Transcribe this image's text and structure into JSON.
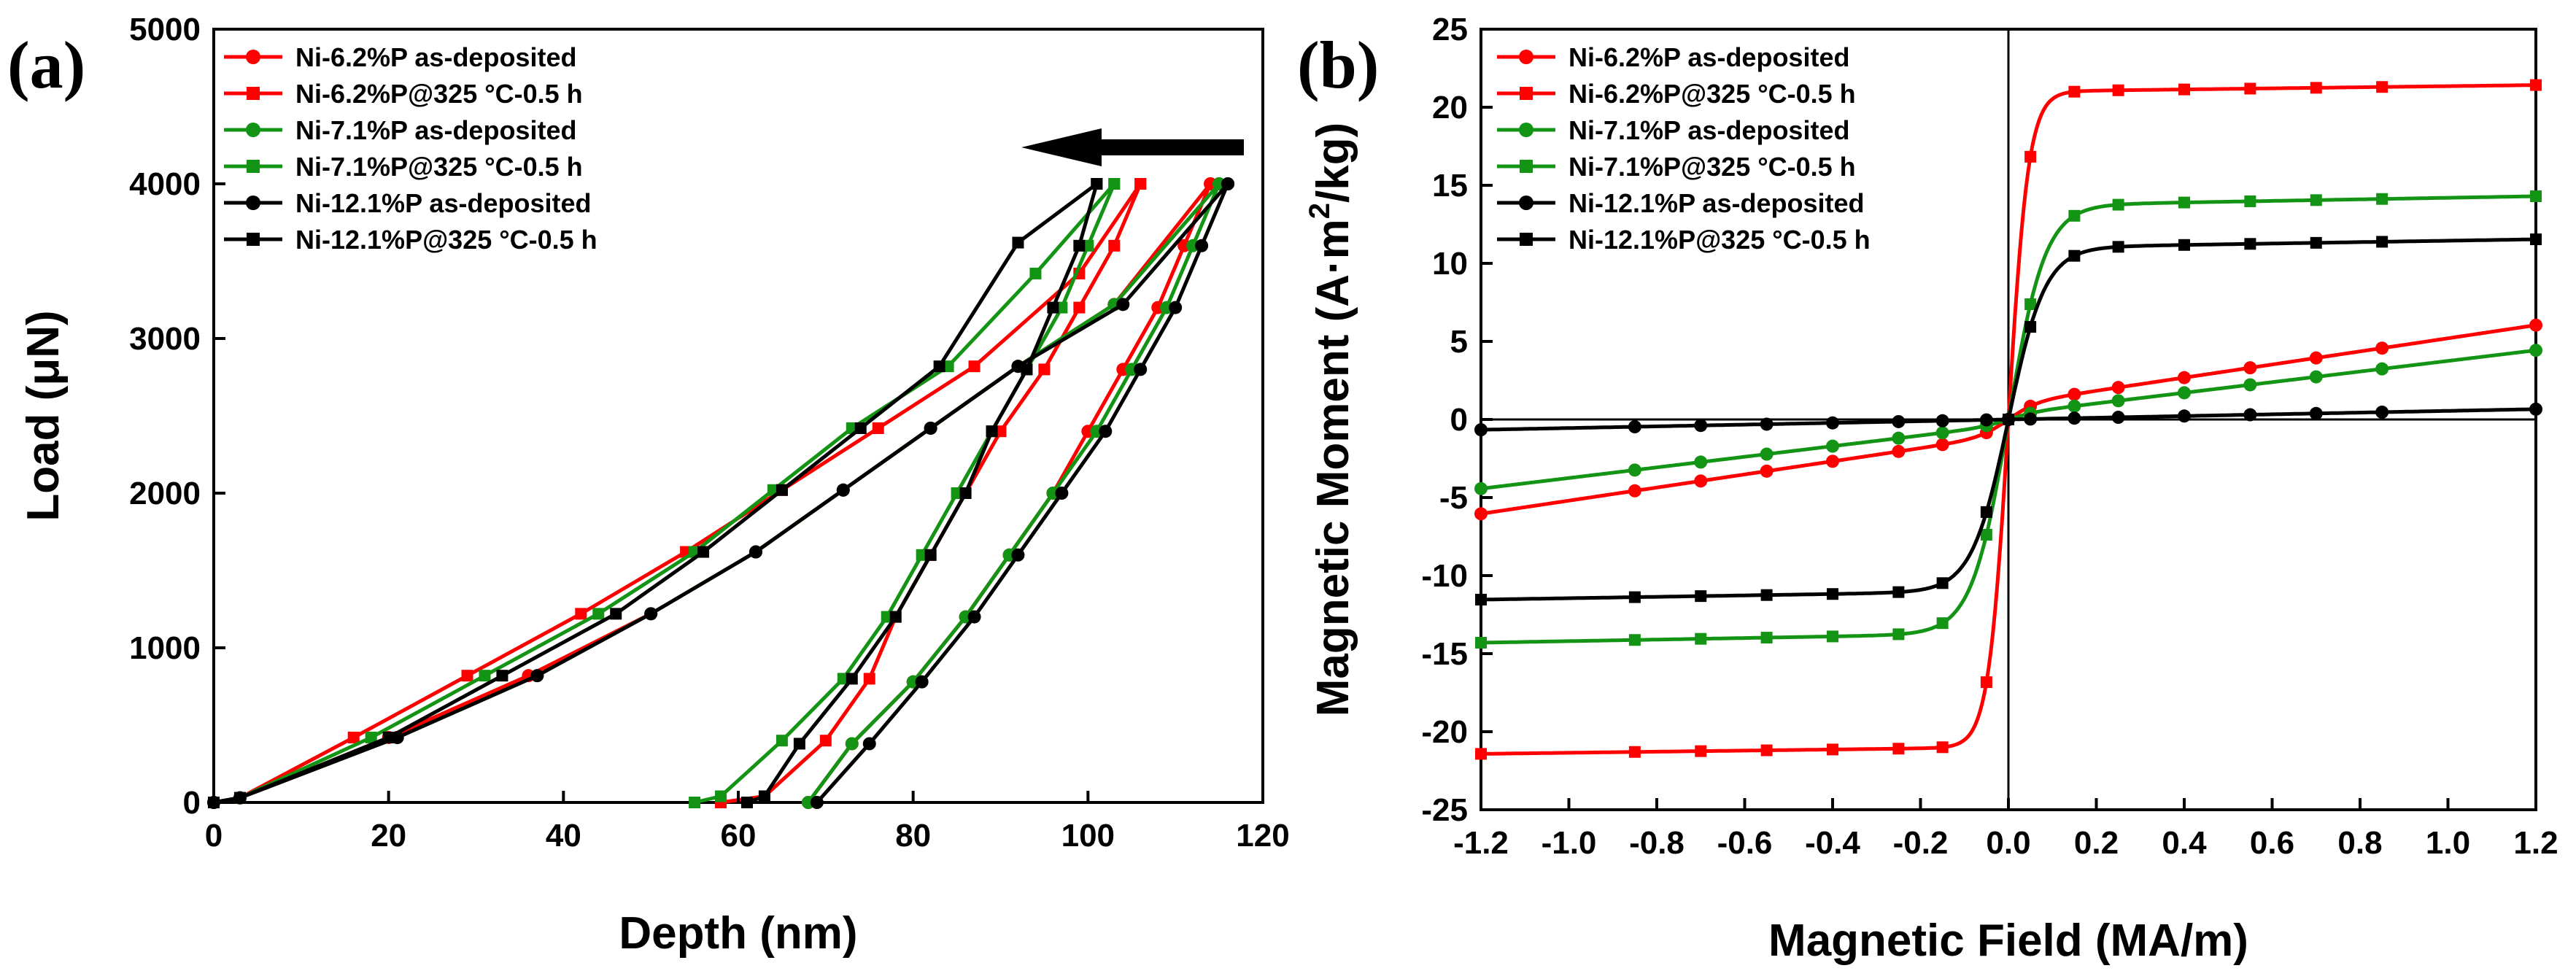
{
  "chart_data": [
    {
      "type": "line",
      "panel_label": "(a)",
      "xlabel": "Depth (nm)",
      "ylabel": "Load (μN)",
      "xlim": [
        0,
        120
      ],
      "ylim": [
        0,
        5000
      ],
      "xticks": [
        "0",
        "20",
        "40",
        "60",
        "80",
        "100",
        "120"
      ],
      "yticks": [
        "0",
        "1000",
        "2000",
        "3000",
        "4000",
        "5000"
      ],
      "legend_position": "top-left",
      "annotation": "arrow pointing left near top-right",
      "series": [
        {
          "name": "Ni-6.2%P as-deposited",
          "color": "#ff0000",
          "marker": "circle",
          "loading": {
            "x": [
              0,
              3,
              20,
              36,
              50,
              62,
              72,
              82,
              92,
              103,
              114
            ],
            "y": [
              0,
              30,
              420,
              820,
              1220,
              1620,
              2020,
              2420,
              2820,
              3220,
              4000
            ]
          },
          "unloading": {
            "x": [
              114,
              111,
              108,
              104,
              100,
              96,
              91,
              86,
              80,
              73,
              68
            ],
            "y": [
              4000,
              3600,
              3200,
              2800,
              2400,
              2000,
              1600,
              1200,
              780,
              380,
              0
            ]
          }
        },
        {
          "name": "Ni-6.2%P@325 °C-0.5 h",
          "color": "#ff0000",
          "marker": "square",
          "loading": {
            "x": [
              0,
              3,
              16,
              29,
              42,
              54,
              65,
              76,
              87,
              99,
              106
            ],
            "y": [
              0,
              30,
              420,
              820,
              1220,
              1620,
              2020,
              2420,
              2820,
              3420,
              4000
            ]
          },
          "unloading": {
            "x": [
              106,
              103,
              99,
              95,
              90,
              86,
              82,
              78,
              75,
              70,
              63,
              58
            ],
            "y": [
              4000,
              3600,
              3200,
              2800,
              2400,
              2000,
              1600,
              1200,
              800,
              400,
              40,
              0
            ]
          }
        },
        {
          "name": "Ni-7.1%P as-deposited",
          "color": "#149414",
          "marker": "circle",
          "loading": {
            "x": [
              0,
              3,
              21,
              37,
              50,
              62,
              72,
              82,
              92,
              103,
              115
            ],
            "y": [
              0,
              30,
              420,
              820,
              1220,
              1620,
              2020,
              2420,
              2820,
              3220,
              4000
            ]
          },
          "unloading": {
            "x": [
              115,
              112,
              109,
              105,
              101,
              96,
              91,
              86,
              80,
              73,
              68
            ],
            "y": [
              4000,
              3600,
              3200,
              2800,
              2400,
              2000,
              1600,
              1200,
              780,
              380,
              0
            ]
          }
        },
        {
          "name": "Ni-7.1%P@325 °C-0.5 h",
          "color": "#149414",
          "marker": "square",
          "loading": {
            "x": [
              0,
              3,
              18,
              31,
              44,
              55,
              64,
              73,
              84,
              94,
              103
            ],
            "y": [
              0,
              30,
              420,
              820,
              1220,
              1620,
              2020,
              2420,
              2820,
              3420,
              4000
            ]
          },
          "unloading": {
            "x": [
              103,
              100,
              97,
              93,
              89,
              85,
              81,
              77,
              72,
              65,
              58,
              55
            ],
            "y": [
              4000,
              3600,
              3200,
              2800,
              2400,
              2000,
              1600,
              1200,
              800,
              400,
              40,
              0
            ]
          }
        },
        {
          "name": "Ni-12.1%P as-deposited",
          "color": "#000000",
          "marker": "circle",
          "loading": {
            "x": [
              0,
              3,
              21,
              37,
              50,
              62,
              72,
              82,
              92,
              104,
              116
            ],
            "y": [
              0,
              30,
              420,
              820,
              1220,
              1620,
              2020,
              2420,
              2820,
              3220,
              4000
            ]
          },
          "unloading": {
            "x": [
              116,
              113,
              110,
              106,
              102,
              97,
              92,
              87,
              81,
              75,
              69
            ],
            "y": [
              4000,
              3600,
              3200,
              2800,
              2400,
              2000,
              1600,
              1200,
              780,
              380,
              0
            ]
          }
        },
        {
          "name": "Ni-12.1%P@325 °C-0.5 h",
          "color": "#000000",
          "marker": "square",
          "loading": {
            "x": [
              0,
              3,
              20,
              33,
              46,
              56,
              65,
              74,
              83,
              92,
              101
            ],
            "y": [
              0,
              30,
              420,
              820,
              1220,
              1620,
              2020,
              2420,
              2820,
              3620,
              4000
            ]
          },
          "unloading": {
            "x": [
              101,
              99,
              96,
              93,
              89,
              86,
              82,
              78,
              73,
              67,
              63,
              61
            ],
            "y": [
              4000,
              3600,
              3200,
              2800,
              2400,
              2000,
              1600,
              1200,
              800,
              380,
              40,
              0
            ]
          }
        }
      ]
    },
    {
      "type": "line",
      "panel_label": "(b)",
      "xlabel": "Magnetic Field (MA/m)",
      "ylabel_parts": [
        "Magnetic Moment (A·m",
        "2",
        "/kg)"
      ],
      "xlim": [
        -1.2,
        1.2
      ],
      "ylim": [
        -25,
        25
      ],
      "xticks": [
        "-1.2",
        "-1.0",
        "-0.8",
        "-0.6",
        "-0.4",
        "-0.2",
        "0.0",
        "0.2",
        "0.4",
        "0.6",
        "0.8",
        "1.0",
        "1.2"
      ],
      "yticks": [
        "-25",
        "-20",
        "-15",
        "-10",
        "-5",
        "0",
        "5",
        "10",
        "15",
        "20",
        "25"
      ],
      "legend_position": "top-left",
      "series": [
        {
          "name": "Ni-6.2%P as-deposited",
          "color": "#ff0000",
          "marker": "circle",
          "type": "linear-slope",
          "slope": 4.2,
          "k": 15,
          "c": 1.0,
          "x": [
            -1.2,
            -0.85,
            -0.7,
            -0.55,
            -0.4,
            -0.25,
            -0.15,
            -0.05,
            0,
            0.05,
            0.15,
            0.25,
            0.4,
            0.55,
            0.7,
            0.85,
            1.2
          ]
        },
        {
          "name": "Ni-6.2%P@325 °C-0.5 h",
          "color": "#ff0000",
          "marker": "square",
          "type": "tanh",
          "ms": 21.0,
          "k": 22,
          "slope": 0.35,
          "x": [
            -1.2,
            -0.85,
            -0.7,
            -0.55,
            -0.4,
            -0.25,
            -0.15,
            -0.05,
            0,
            0.05,
            0.15,
            0.25,
            0.4,
            0.55,
            0.7,
            0.85,
            1.2
          ]
        },
        {
          "name": "Ni-7.1%P as-deposited",
          "color": "#149414",
          "marker": "circle",
          "type": "linear-slope",
          "slope": 3.4,
          "k": 15,
          "c": 0.35,
          "x": [
            -1.2,
            -0.85,
            -0.7,
            -0.55,
            -0.4,
            -0.25,
            -0.15,
            -0.05,
            0,
            0.05,
            0.15,
            0.25,
            0.4,
            0.55,
            0.7,
            0.85,
            1.2
          ]
        },
        {
          "name": "Ni-7.1%P@325 °C-0.5 h",
          "color": "#149414",
          "marker": "square",
          "type": "tanh",
          "ms": 13.7,
          "k": 12,
          "slope": 0.5,
          "x": [
            -1.2,
            -0.85,
            -0.7,
            -0.55,
            -0.4,
            -0.25,
            -0.15,
            -0.05,
            0,
            0.05,
            0.15,
            0.25,
            0.4,
            0.55,
            0.7,
            0.85,
            1.2
          ]
        },
        {
          "name": "Ni-12.1%P as-deposited",
          "color": "#000000",
          "marker": "circle",
          "type": "linear-slope",
          "slope": 0.55,
          "k": 15,
          "c": 0.0,
          "x": [
            -1.2,
            -0.85,
            -0.7,
            -0.55,
            -0.4,
            -0.25,
            -0.15,
            -0.05,
            0,
            0.05,
            0.15,
            0.25,
            0.4,
            0.55,
            0.7,
            0.85,
            1.2
          ]
        },
        {
          "name": "Ni-12.1%P@325 °C-0.5 h",
          "color": "#000000",
          "marker": "square",
          "type": "tanh",
          "ms": 11.0,
          "k": 12,
          "slope": 0.45,
          "x": [
            -1.2,
            -0.85,
            -0.7,
            -0.55,
            -0.4,
            -0.25,
            -0.15,
            -0.05,
            0,
            0.05,
            0.15,
            0.25,
            0.4,
            0.55,
            0.7,
            0.85,
            1.2
          ]
        }
      ]
    }
  ]
}
